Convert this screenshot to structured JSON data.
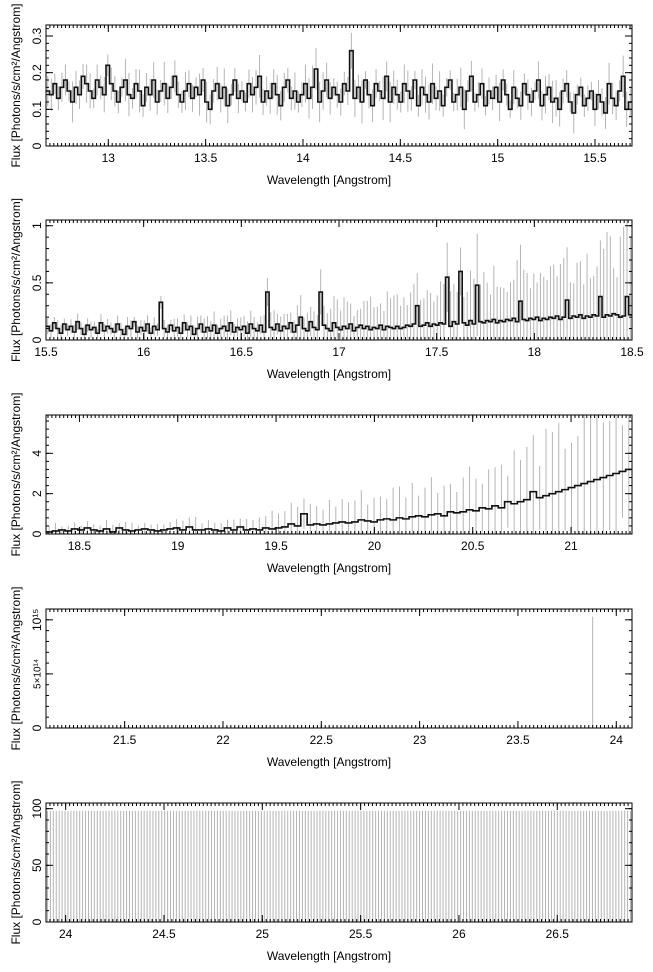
{
  "chart_data": [
    {
      "type": "line",
      "xlabel": "Wavelength [Angstrom]",
      "ylabel": "Flux [Photons/s/cm²/Angstrom]",
      "xlim": [
        12.68,
        15.69
      ],
      "ylim": [
        0,
        0.33
      ],
      "xticks": [
        13,
        13.5,
        14,
        14.5,
        15,
        15.5
      ],
      "xtick_labels": [
        "13",
        "13.5",
        "14",
        "14.5",
        "15",
        "15.5"
      ],
      "yticks": [
        0,
        0.1,
        0.2,
        0.3
      ],
      "ytick_labels": [
        "0",
        "0.1",
        "0.2",
        "0.3"
      ],
      "series": [
        {
          "style": "histogram-with-errorbars",
          "x_start": 12.68,
          "x_end": 15.69,
          "values": [
            0.15,
            0.14,
            0.17,
            0.13,
            0.16,
            0.18,
            0.15,
            0.12,
            0.16,
            0.14,
            0.19,
            0.17,
            0.15,
            0.13,
            0.18,
            0.16,
            0.14,
            0.22,
            0.17,
            0.15,
            0.12,
            0.16,
            0.18,
            0.14,
            0.13,
            0.17,
            0.15,
            0.11,
            0.16,
            0.14,
            0.18,
            0.12,
            0.15,
            0.17,
            0.13,
            0.16,
            0.19,
            0.14,
            0.12,
            0.15,
            0.17,
            0.13,
            0.16,
            0.14,
            0.18,
            0.12,
            0.1,
            0.15,
            0.17,
            0.13,
            0.16,
            0.11,
            0.14,
            0.18,
            0.13,
            0.15,
            0.12,
            0.17,
            0.14,
            0.16,
            0.19,
            0.12,
            0.15,
            0.13,
            0.17,
            0.14,
            0.11,
            0.16,
            0.18,
            0.13,
            0.15,
            0.12,
            0.14,
            0.17,
            0.13,
            0.16,
            0.21,
            0.12,
            0.15,
            0.18,
            0.13,
            0.16,
            0.14,
            0.12,
            0.17,
            0.15,
            0.26,
            0.13,
            0.16,
            0.12,
            0.18,
            0.14,
            0.11,
            0.17,
            0.15,
            0.13,
            0.19,
            0.12,
            0.16,
            0.14,
            0.12,
            0.17,
            0.15,
            0.13,
            0.18,
            0.11,
            0.16,
            0.14,
            0.12,
            0.17,
            0.13,
            0.15,
            0.11,
            0.16,
            0.18,
            0.12,
            0.14,
            0.16,
            0.1,
            0.15,
            0.19,
            0.12,
            0.14,
            0.17,
            0.11,
            0.15,
            0.13,
            0.16,
            0.12,
            0.18,
            0.14,
            0.1,
            0.16,
            0.13,
            0.11,
            0.17,
            0.14,
            0.12,
            0.15,
            0.18,
            0.11,
            0.14,
            0.16,
            0.12,
            0.13,
            0.1,
            0.15,
            0.17,
            0.12,
            0.09,
            0.14,
            0.16,
            0.11,
            0.13,
            0.15,
            0.1,
            0.14,
            0.12,
            0.09,
            0.17,
            0.13,
            0.11,
            0.15,
            0.19,
            0.1,
            0.12
          ],
          "errors": 0.04
        }
      ]
    },
    {
      "type": "line",
      "xlabel": "Wavelength [Angstrom]",
      "ylabel": "Flux [Photons/s/cm²/Angstrom]",
      "xlim": [
        15.5,
        18.5
      ],
      "ylim": [
        0,
        1.05
      ],
      "xticks": [
        15.5,
        16,
        16.5,
        17,
        17.5,
        18,
        18.5
      ],
      "xtick_labels": [
        "15.5",
        "16",
        "16.5",
        "17",
        "17.5",
        "18",
        "18.5"
      ],
      "yticks": [
        0,
        0.5,
        1
      ],
      "ytick_labels": [
        "0",
        "0.5",
        "1"
      ],
      "series": [
        {
          "style": "histogram-with-errorbars",
          "x_start": 15.5,
          "x_end": 18.5,
          "values": [
            0.12,
            0.08,
            0.15,
            0.1,
            0.06,
            0.14,
            0.09,
            0.12,
            0.07,
            0.16,
            0.1,
            0.05,
            0.13,
            0.09,
            0.11,
            0.06,
            0.15,
            0.08,
            0.12,
            0.1,
            0.07,
            0.14,
            0.09,
            0.05,
            0.12,
            0.1,
            0.16,
            0.07,
            0.11,
            0.08,
            0.14,
            0.06,
            0.12,
            0.09,
            0.33,
            0.1,
            0.07,
            0.13,
            0.08,
            0.11,
            0.06,
            0.15,
            0.09,
            0.12,
            0.05,
            0.1,
            0.14,
            0.07,
            0.11,
            0.08,
            0.13,
            0.06,
            0.1,
            0.12,
            0.08,
            0.15,
            0.07,
            0.11,
            0.09,
            0.12,
            0.06,
            0.14,
            0.1,
            0.08,
            0.13,
            0.07,
            0.42,
            0.11,
            0.09,
            0.14,
            0.08,
            0.12,
            0.1,
            0.15,
            0.07,
            0.13,
            0.2,
            0.1,
            0.08,
            0.16,
            0.11,
            0.09,
            0.42,
            0.13,
            0.1,
            0.08,
            0.15,
            0.11,
            0.09,
            0.12,
            0.1,
            0.14,
            0.08,
            0.11,
            0.13,
            0.1,
            0.12,
            0.09,
            0.11,
            0.1,
            0.13,
            0.09,
            0.12,
            0.11,
            0.1,
            0.12,
            0.1,
            0.11,
            0.13,
            0.12,
            0.14,
            0.3,
            0.12,
            0.13,
            0.15,
            0.12,
            0.14,
            0.13,
            0.15,
            0.14,
            0.55,
            0.12,
            0.16,
            0.14,
            0.6,
            0.15,
            0.13,
            0.17,
            0.14,
            0.48,
            0.16,
            0.15,
            0.17,
            0.16,
            0.18,
            0.15,
            0.17,
            0.16,
            0.18,
            0.17,
            0.19,
            0.16,
            0.34,
            0.18,
            0.17,
            0.19,
            0.18,
            0.2,
            0.17,
            0.19,
            0.18,
            0.2,
            0.19,
            0.21,
            0.18,
            0.2,
            0.35,
            0.19,
            0.21,
            0.2,
            0.22,
            0.19,
            0.21,
            0.2,
            0.22,
            0.21,
            0.38,
            0.2,
            0.22,
            0.21,
            0.23,
            0.22,
            0.2,
            0.21,
            0.38,
            0.22
          ],
          "errors": "growing"
        }
      ]
    },
    {
      "type": "line",
      "xlabel": "Wavelength [Angstrom]",
      "ylabel": "Flux [Photons/s/cm²/Angstrom]",
      "xlim": [
        18.33,
        21.31
      ],
      "ylim": [
        0,
        5.9
      ],
      "xticks": [
        18.5,
        19,
        19.5,
        20,
        20.5,
        21
      ],
      "xtick_labels": [
        "18.5",
        "19",
        "19.5",
        "20",
        "20.5",
        "21"
      ],
      "yticks": [
        0,
        2,
        4
      ],
      "ytick_labels": [
        "0",
        "2",
        "4"
      ],
      "series": [
        {
          "style": "histogram-with-errorbars",
          "x_start": 18.33,
          "x_end": 21.31,
          "values": [
            0.1,
            0.15,
            0.2,
            0.15,
            0.25,
            0.2,
            0.3,
            0.2,
            0.15,
            0.25,
            0.1,
            0.3,
            0.2,
            0.15,
            0.2,
            0.25,
            0.2,
            0.15,
            0.2,
            0.25,
            0.3,
            0.2,
            0.35,
            0.2,
            0.2,
            0.25,
            0.2,
            0.15,
            0.3,
            0.2,
            0.35,
            0.2,
            0.25,
            0.2,
            0.3,
            0.25,
            0.3,
            0.35,
            0.5,
            0.4,
            1.0,
            0.45,
            0.5,
            0.45,
            0.5,
            0.55,
            0.6,
            0.55,
            0.6,
            0.7,
            0.65,
            0.6,
            0.7,
            0.75,
            0.7,
            0.8,
            0.75,
            0.85,
            0.9,
            0.85,
            0.95,
            1.0,
            0.9,
            1.1,
            1.05,
            1.1,
            1.2,
            1.15,
            1.3,
            1.25,
            1.4,
            1.3,
            1.6,
            1.5,
            1.6,
            1.7,
            2.1,
            1.8,
            1.9,
            2.0,
            2.1,
            2.2,
            2.3,
            2.4,
            2.5,
            2.6,
            2.7,
            2.8,
            2.9,
            3.0,
            3.1,
            3.2
          ],
          "errors": "growing"
        }
      ]
    },
    {
      "type": "line",
      "xlabel": "Wavelength [Angstrom]",
      "ylabel": "Flux [Photons/s/cm²/Angstrom]",
      "xlim": [
        21.1,
        24.08
      ],
      "ylim": [
        0,
        1100000000000000.0
      ],
      "xticks": [
        21.5,
        22,
        22.5,
        23,
        23.5,
        24
      ],
      "xtick_labels": [
        "21.5",
        "22",
        "22.5",
        "23",
        "23.5",
        "24"
      ],
      "yticks": [
        0,
        500000000000000.0,
        1000000000000000.0
      ],
      "ytick_labels": [
        "0",
        "5×10¹⁴",
        "10¹⁵"
      ],
      "series": [
        {
          "style": "errorbar-spike",
          "x": [
            23.88
          ],
          "values": [
            1030000000000000.0
          ]
        }
      ]
    },
    {
      "type": "line",
      "xlabel": "Wavelength [Angstrom]",
      "ylabel": "Flux [Photons/s/cm²/Angstrom]",
      "xlim": [
        23.9,
        26.88
      ],
      "ylim": [
        0,
        105
      ],
      "xticks": [
        24,
        24.5,
        25,
        25.5,
        26,
        26.5
      ],
      "xtick_labels": [
        "24",
        "24.5",
        "25",
        "25.5",
        "26",
        "26.5"
      ],
      "yticks": [
        0,
        50,
        100
      ],
      "ytick_labels": [
        "0",
        "50",
        "100"
      ],
      "series": [
        {
          "style": "uniform-errorbars",
          "x_start": 23.9,
          "x_end": 26.88,
          "upper": 98,
          "count": 200
        }
      ]
    }
  ]
}
